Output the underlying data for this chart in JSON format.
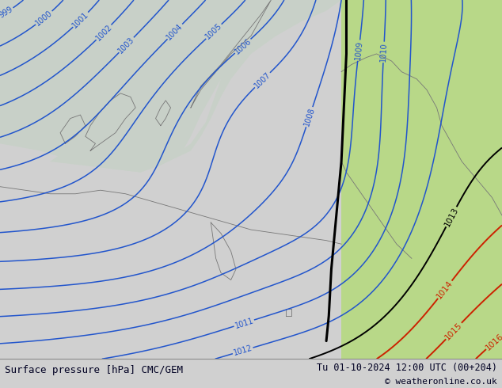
{
  "title_left": "Surface pressure [hPa] CMC/GEM",
  "title_right": "Tu 01-10-2024 12:00 UTC (00+204)",
  "copyright": "© weatheronline.co.uk",
  "land_color": "#b8d888",
  "sea_color": "#c8d0c8",
  "blue_color": "#2255cc",
  "black_color": "#000000",
  "red_color": "#cc2200",
  "footer_bg": "#d0d0d0",
  "footer_text_color": "#000022",
  "figsize": [
    6.34,
    4.9
  ],
  "dpi": 100
}
